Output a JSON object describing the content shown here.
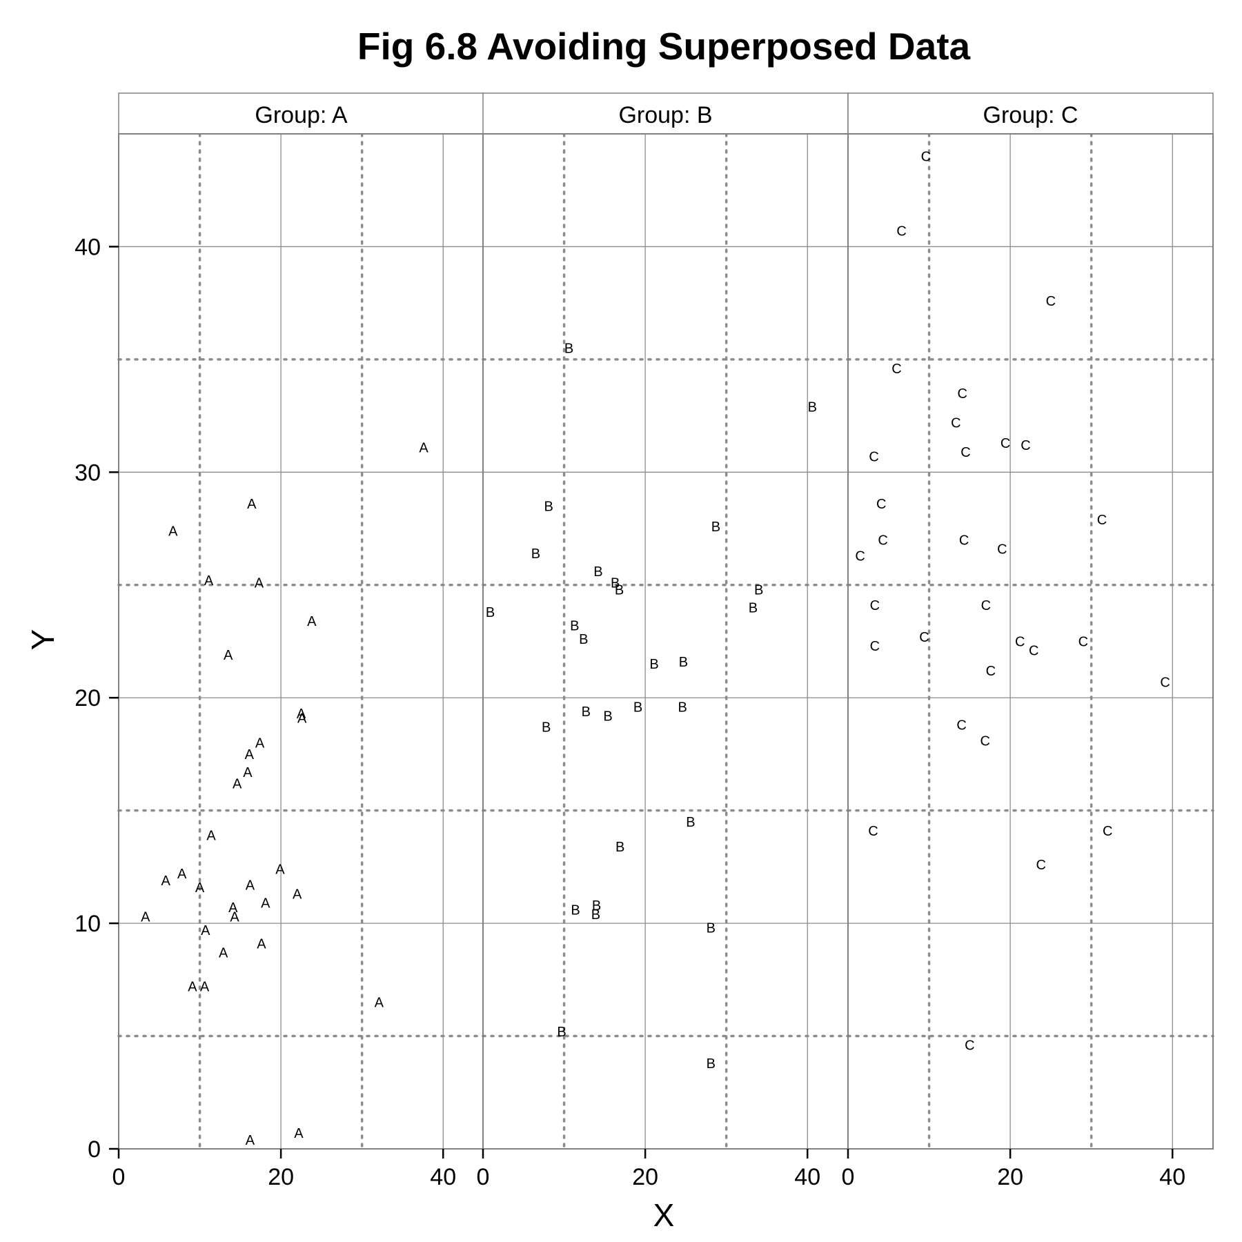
{
  "chart_data": {
    "type": "scatter",
    "title": "Fig 6.8 Avoiding Superposed Data",
    "xlabel": "X",
    "ylabel": "Y",
    "xlim": [
      0,
      45
    ],
    "ylim": [
      0,
      45
    ],
    "x_ticks": [
      0,
      20,
      40
    ],
    "y_ticks": [
      0,
      10,
      20,
      30,
      40
    ],
    "x_tick_labels": [
      "0",
      "20",
      "40"
    ],
    "y_tick_labels": [
      "0",
      "10",
      "20",
      "30",
      "40"
    ],
    "x_minor_grid": [
      10,
      30
    ],
    "y_minor_grid": [
      5,
      15,
      25,
      35
    ],
    "grid": true,
    "panels": [
      {
        "label": "Group: A",
        "marker": "A",
        "points": [
          [
            37.6,
            31.1
          ],
          [
            16.4,
            28.6
          ],
          [
            6.7,
            27.4
          ],
          [
            11.1,
            25.2
          ],
          [
            17.3,
            25.1
          ],
          [
            23.8,
            23.4
          ],
          [
            13.5,
            21.9
          ],
          [
            22.5,
            19.3
          ],
          [
            22.6,
            19.1
          ],
          [
            17.4,
            18.0
          ],
          [
            16.1,
            17.5
          ],
          [
            15.9,
            16.7
          ],
          [
            14.6,
            16.2
          ],
          [
            11.4,
            13.9
          ],
          [
            19.9,
            12.4
          ],
          [
            7.8,
            12.2
          ],
          [
            5.8,
            11.9
          ],
          [
            10.0,
            11.6
          ],
          [
            16.2,
            11.7
          ],
          [
            22.0,
            11.3
          ],
          [
            18.1,
            10.9
          ],
          [
            14.1,
            10.7
          ],
          [
            3.3,
            10.3
          ],
          [
            14.3,
            10.3
          ],
          [
            10.7,
            9.7
          ],
          [
            17.6,
            9.1
          ],
          [
            12.9,
            8.7
          ],
          [
            9.1,
            7.2
          ],
          [
            10.6,
            7.2
          ],
          [
            32.1,
            6.5
          ],
          [
            22.2,
            0.7
          ],
          [
            16.2,
            0.4
          ]
        ]
      },
      {
        "label": "Group: B",
        "marker": "B",
        "points": [
          [
            10.6,
            35.5
          ],
          [
            40.6,
            32.9
          ],
          [
            8.1,
            28.5
          ],
          [
            28.7,
            27.6
          ],
          [
            6.5,
            26.4
          ],
          [
            14.2,
            25.6
          ],
          [
            16.3,
            25.1
          ],
          [
            16.8,
            24.8
          ],
          [
            34.0,
            24.8
          ],
          [
            0.9,
            23.8
          ],
          [
            33.3,
            24.0
          ],
          [
            11.3,
            23.2
          ],
          [
            12.4,
            22.6
          ],
          [
            21.1,
            21.5
          ],
          [
            24.7,
            21.6
          ],
          [
            19.1,
            19.6
          ],
          [
            24.6,
            19.6
          ],
          [
            12.7,
            19.4
          ],
          [
            15.4,
            19.2
          ],
          [
            7.8,
            18.7
          ],
          [
            25.6,
            14.5
          ],
          [
            16.9,
            13.4
          ],
          [
            14.0,
            10.8
          ],
          [
            11.4,
            10.6
          ],
          [
            13.9,
            10.4
          ],
          [
            28.1,
            9.8
          ],
          [
            9.7,
            5.2
          ],
          [
            28.1,
            3.8
          ]
        ]
      },
      {
        "label": "Group: C",
        "marker": "C",
        "points": [
          [
            9.6,
            44.0
          ],
          [
            6.6,
            40.7
          ],
          [
            25.0,
            37.6
          ],
          [
            6.0,
            34.6
          ],
          [
            14.1,
            33.5
          ],
          [
            13.3,
            32.2
          ],
          [
            19.4,
            31.3
          ],
          [
            21.9,
            31.2
          ],
          [
            14.5,
            30.9
          ],
          [
            3.2,
            30.7
          ],
          [
            4.1,
            28.6
          ],
          [
            31.3,
            27.9
          ],
          [
            14.3,
            27.0
          ],
          [
            4.3,
            27.0
          ],
          [
            19.0,
            26.6
          ],
          [
            1.5,
            26.3
          ],
          [
            3.3,
            24.1
          ],
          [
            17.0,
            24.1
          ],
          [
            9.4,
            22.7
          ],
          [
            3.3,
            22.3
          ],
          [
            21.2,
            22.5
          ],
          [
            22.9,
            22.1
          ],
          [
            29.0,
            22.5
          ],
          [
            17.6,
            21.2
          ],
          [
            39.1,
            20.7
          ],
          [
            14.0,
            18.8
          ],
          [
            16.9,
            18.1
          ],
          [
            3.1,
            14.1
          ],
          [
            32.0,
            14.1
          ],
          [
            23.8,
            12.6
          ],
          [
            15.0,
            4.6
          ]
        ]
      }
    ]
  }
}
